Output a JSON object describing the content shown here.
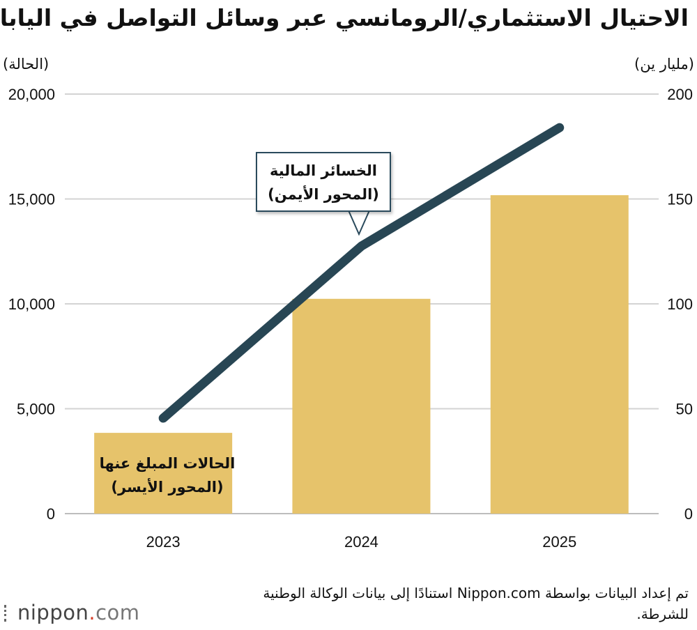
{
  "title": "الاحتيال الاستثماري/الرومانسي عبر وسائل التواصل في اليابان",
  "axes": {
    "left_unit": "(الحالة)",
    "right_unit": "(مليار ين)"
  },
  "annotations": {
    "line_label_1": "الخسائر المالية",
    "line_label_2": "(المحور الأيمن)",
    "bar_label_1": "الحالات المبلغ عنها",
    "bar_label_2": "(المحور الأيسر)"
  },
  "source": "تم إعداد البيانات بواسطة Nippon.com استنادًا إلى بيانات الوكالة الوطنية للشرطة.",
  "logo": {
    "main": "nippon",
    "dot": ".",
    "suffix": "com"
  },
  "colors": {
    "bar": "#e6c36b",
    "line": "#284654",
    "grid": "#d3d3d3"
  },
  "chart_data": {
    "type": "bar",
    "categories": [
      "2023",
      "2024",
      "2025"
    ],
    "series": [
      {
        "name": "الحالات المبلغ عنها",
        "type": "bar",
        "axis": "left",
        "values": [
          3850,
          10240,
          15180
        ]
      },
      {
        "name": "الخسائر المالية",
        "type": "line",
        "axis": "right",
        "values": [
          45.5,
          127.5,
          184.0
        ]
      }
    ],
    "left_axis": {
      "label": "(الحالة)",
      "ylim": [
        0,
        20000
      ],
      "ticks": [
        "0",
        "5,000",
        "10,000",
        "15,000",
        "20,000"
      ]
    },
    "right_axis": {
      "label": "(مليار ين)",
      "ylim": [
        0,
        200
      ],
      "ticks": [
        "0",
        "50",
        "100",
        "150",
        "200"
      ]
    },
    "grid": true
  }
}
